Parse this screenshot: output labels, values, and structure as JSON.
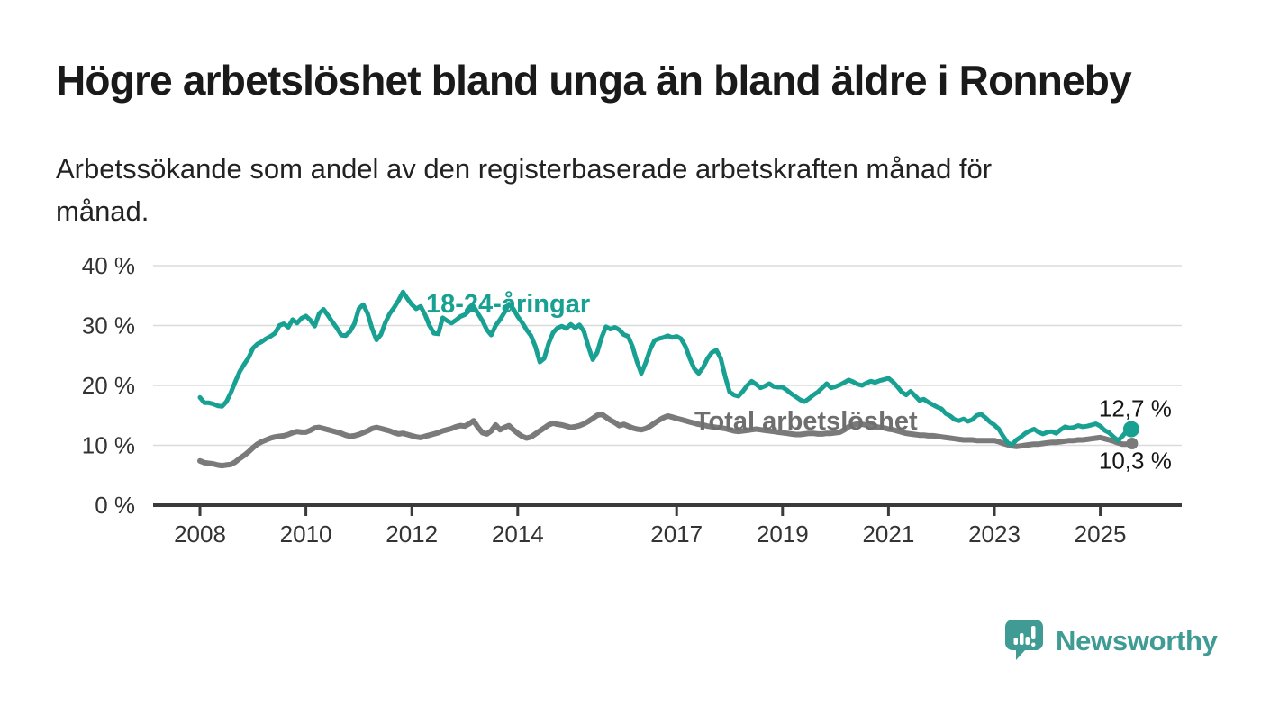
{
  "header": {
    "title": "Högre arbetslöshet bland unga än bland äldre i Ronneby",
    "subtitle_line1": "Arbetssökande som andel av den registerbaserade arbetskraften månad för",
    "subtitle_line2": "månad."
  },
  "chart_data": {
    "type": "line",
    "x_unit": "monthly",
    "x_start_year": 2008,
    "ylim": [
      0,
      40
    ],
    "grid": "horizontal",
    "legend_position": "inline-labels",
    "y_tick_values": [
      0,
      10,
      20,
      30,
      40
    ],
    "y_tick_labels": [
      "0 %",
      "10 %",
      "20 %",
      "30 %",
      "40 %"
    ],
    "x_tick_values": [
      2008,
      2010,
      2012,
      2014,
      2017,
      2019,
      2021,
      2023,
      2025
    ],
    "x_tick_labels": [
      "2008",
      "2010",
      "2012",
      "2014",
      "2017",
      "2019",
      "2021",
      "2023",
      "2025"
    ],
    "series": [
      {
        "name": "18-24-åringar",
        "color": "#18A092",
        "label_color": "#18A092",
        "line_width": 5,
        "end_label": "12,7 %",
        "end_value": 12.7,
        "values": [
          18.0,
          17.1,
          17.1,
          16.9,
          16.6,
          16.5,
          17.3,
          18.8,
          20.6,
          22.3,
          23.5,
          24.6,
          26.2,
          26.9,
          27.3,
          27.8,
          28.2,
          28.7,
          30.0,
          30.3,
          29.7,
          31.0,
          30.4,
          31.2,
          31.6,
          30.9,
          29.9,
          32.0,
          32.7,
          31.7,
          30.6,
          29.6,
          28.4,
          28.3,
          29.0,
          30.3,
          32.8,
          33.5,
          32.0,
          29.5,
          27.6,
          28.5,
          30.5,
          32.0,
          33.0,
          34.2,
          35.6,
          34.5,
          33.5,
          32.8,
          33.2,
          31.8,
          30.0,
          28.7,
          28.6,
          31.3,
          30.8,
          30.4,
          30.9,
          31.5,
          31.8,
          32.5,
          33.2,
          32.0,
          30.8,
          29.3,
          28.4,
          30.0,
          31.0,
          32.2,
          33.6,
          32.8,
          31.5,
          30.5,
          29.3,
          28.3,
          26.5,
          23.9,
          24.5,
          27.0,
          28.8,
          29.6,
          29.9,
          29.5,
          30.2,
          29.6,
          30.1,
          29.0,
          26.5,
          24.3,
          25.5,
          28.0,
          29.8,
          29.4,
          29.7,
          29.3,
          28.5,
          28.2,
          26.5,
          24.0,
          22.0,
          23.8,
          26.0,
          27.5,
          27.8,
          28.0,
          28.3,
          28.0,
          28.2,
          27.8,
          26.5,
          24.5,
          22.8,
          22.0,
          23.0,
          24.5,
          25.5,
          25.9,
          24.5,
          21.5,
          18.9,
          18.4,
          18.2,
          19.0,
          20.0,
          20.7,
          20.2,
          19.6,
          19.9,
          20.3,
          19.8,
          19.7,
          19.7,
          19.2,
          18.6,
          18.1,
          17.6,
          17.3,
          17.8,
          18.4,
          18.9,
          19.6,
          20.3,
          19.6,
          19.8,
          20.1,
          20.5,
          20.9,
          20.6,
          20.2,
          20.0,
          20.4,
          20.7,
          20.5,
          20.8,
          21.0,
          21.2,
          20.6,
          19.8,
          18.9,
          18.4,
          19.0,
          18.3,
          17.5,
          17.7,
          17.2,
          16.8,
          16.4,
          16.1,
          15.3,
          14.9,
          14.3,
          14.1,
          14.4,
          14.0,
          14.3,
          15.0,
          15.2,
          14.6,
          13.9,
          13.4,
          12.7,
          11.5,
          10.4,
          10.1,
          10.9,
          11.4,
          12.0,
          12.4,
          12.7,
          12.2,
          11.9,
          12.2,
          12.3,
          12.0,
          12.6,
          13.1,
          12.9,
          13.0,
          13.3,
          13.1,
          13.2,
          13.4,
          13.6,
          13.2,
          12.5,
          12.1,
          11.4,
          10.8,
          11.5,
          12.4,
          12.7
        ]
      },
      {
        "name": "Total arbetslöshet",
        "color": "#7A7A7A",
        "label_color": "#6E6E6E",
        "line_width": 6,
        "end_label": "10,3 %",
        "end_value": 10.3,
        "values": [
          7.4,
          7.1,
          7.0,
          6.9,
          6.7,
          6.6,
          6.7,
          6.8,
          7.2,
          7.8,
          8.3,
          8.9,
          9.6,
          10.2,
          10.6,
          10.9,
          11.2,
          11.4,
          11.5,
          11.6,
          11.8,
          12.1,
          12.3,
          12.2,
          12.2,
          12.5,
          12.9,
          13.0,
          12.8,
          12.6,
          12.4,
          12.2,
          12.0,
          11.7,
          11.5,
          11.6,
          11.8,
          12.1,
          12.4,
          12.8,
          13.0,
          12.8,
          12.6,
          12.4,
          12.1,
          11.9,
          12.0,
          11.8,
          11.6,
          11.4,
          11.3,
          11.5,
          11.7,
          11.9,
          12.1,
          12.4,
          12.6,
          12.8,
          13.1,
          13.3,
          13.2,
          13.6,
          14.1,
          13.0,
          12.1,
          11.9,
          12.4,
          13.4,
          12.6,
          13.0,
          13.3,
          12.6,
          12.0,
          11.5,
          11.2,
          11.4,
          11.9,
          12.4,
          12.9,
          13.4,
          13.7,
          13.5,
          13.4,
          13.2,
          13.0,
          13.1,
          13.3,
          13.6,
          14.0,
          14.5,
          15.0,
          15.2,
          14.7,
          14.2,
          13.8,
          13.3,
          13.5,
          13.2,
          12.9,
          12.7,
          12.6,
          12.8,
          13.2,
          13.7,
          14.2,
          14.6,
          14.9,
          14.7,
          14.5,
          14.3,
          14.1,
          13.9,
          13.7,
          13.5,
          13.4,
          13.2,
          13.1,
          13.0,
          12.9,
          12.8,
          12.6,
          12.4,
          12.3,
          12.4,
          12.5,
          12.6,
          12.7,
          12.6,
          12.5,
          12.4,
          12.3,
          12.2,
          12.1,
          12.0,
          11.9,
          11.8,
          11.8,
          11.9,
          12.0,
          12.0,
          11.9,
          11.9,
          12.0,
          12.0,
          12.1,
          12.2,
          12.6,
          13.1,
          13.4,
          13.6,
          13.5,
          13.4,
          13.3,
          13.1,
          13.0,
          12.9,
          12.7,
          12.6,
          12.4,
          12.2,
          12.0,
          11.9,
          11.8,
          11.7,
          11.7,
          11.6,
          11.6,
          11.5,
          11.4,
          11.3,
          11.2,
          11.1,
          11.0,
          10.9,
          10.9,
          10.9,
          10.8,
          10.8,
          10.8,
          10.8,
          10.8,
          10.6,
          10.3,
          10.1,
          9.9,
          9.8,
          9.9,
          10.0,
          10.1,
          10.2,
          10.2,
          10.3,
          10.4,
          10.5,
          10.5,
          10.6,
          10.7,
          10.8,
          10.8,
          10.9,
          10.9,
          11.0,
          11.1,
          11.2,
          11.3,
          11.1,
          10.9,
          10.7,
          10.4,
          10.2,
          10.2,
          10.3
        ]
      }
    ],
    "colors": {
      "axis": "#3A3A3A",
      "gridline": "#DBDBDB",
      "tick_label": "#333333",
      "value_label": "#161616"
    }
  },
  "branding": {
    "wordmark": "Newsworthy",
    "color": "#3F9B93",
    "icon": "bar-chart-speech-bubble-icon"
  }
}
